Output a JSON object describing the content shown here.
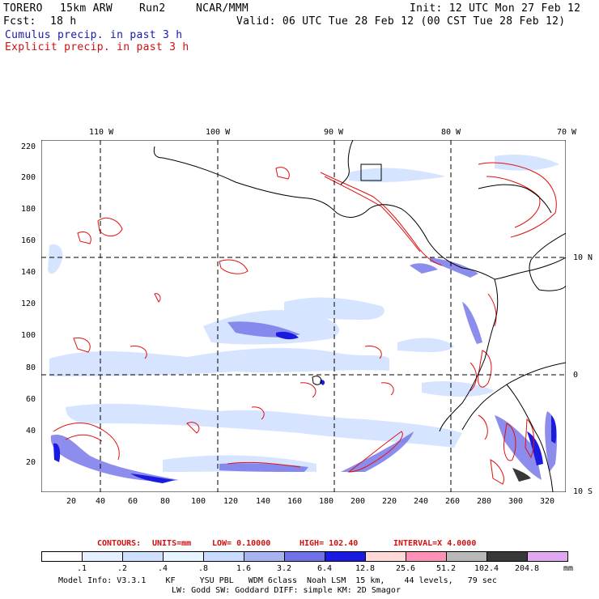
{
  "header": {
    "model": "TORERO",
    "resolution": "15km ARW",
    "run": "Run2",
    "org": "NCAR/MMM",
    "init": "Init: 12 UTC Mon 27 Feb 12",
    "fcst_label": "Fcst:",
    "fcst_value": "18 h",
    "valid": "Valid: 06 UTC Tue 28 Feb 12 (00 CST Tue 28 Feb 12)",
    "line_cumulus": "Cumulus precip. in past 3 h",
    "line_explicit": "Explicit precip. in past 3 h"
  },
  "map": {
    "top_lon_labels": [
      "110 W",
      "100 W",
      "90 W",
      "80 W",
      "70 W"
    ],
    "right_lat_labels": [
      "10 N",
      "0",
      "10 S"
    ],
    "left_grid_labels": [
      "220",
      "200",
      "180",
      "160",
      "140",
      "120",
      "100",
      "80",
      "60",
      "40",
      "20"
    ],
    "bottom_grid_labels": [
      "20",
      "40",
      "60",
      "80",
      "100",
      "120",
      "140",
      "160",
      "180",
      "200",
      "220",
      "240",
      "260",
      "280",
      "300",
      "320"
    ]
  },
  "contours": {
    "contours_label": "CONTOURS:",
    "units": "UNITS=mm",
    "low": "LOW= 0.10000",
    "high": "HIGH= 102.40",
    "interval": "INTERVAL=X 4.0000"
  },
  "colorbar": {
    "labels": [
      ".1",
      ".2",
      ".4",
      ".8",
      "1.6",
      "3.2",
      "6.4",
      "12.8",
      "25.6",
      "51.2",
      "102.4",
      "204.8"
    ],
    "unit": "mm",
    "colors": [
      "#ffffff",
      "#e6efff",
      "#cfe0ff",
      "#e8f4ff",
      "#c8dcff",
      "#a8b4f2",
      "#7070e8",
      "#1a1ae0",
      "#ffd8d8",
      "#ff90b8",
      "#b8b8b8",
      "#383838",
      "#e0a8f0"
    ]
  },
  "footer": {
    "line1": "Model Info: V3.3.1    KF     YSU PBL   WDM 6class  Noah LSM  15 km,    44 levels,   79 sec",
    "line2": "LW: Godd SW: Goddard DIFF: simple KM: 2D Smagor"
  }
}
